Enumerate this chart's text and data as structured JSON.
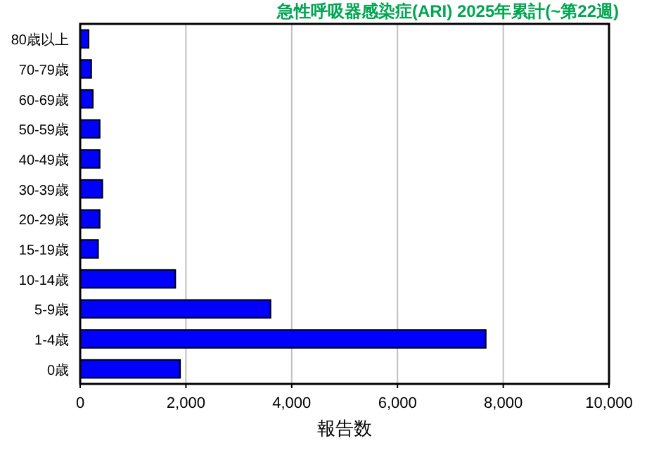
{
  "chart_data": {
    "type": "bar",
    "orientation": "horizontal",
    "title": "急性呼吸器感染症(ARI) 2025年累計(~第22週)",
    "xlabel": "報告数",
    "categories": [
      "80歳以上",
      "70-79歳",
      "60-69歳",
      "50-59歳",
      "40-49歳",
      "30-39歳",
      "20-29歳",
      "15-19歳",
      "10-14歳",
      "5-9歳",
      "1-4歳",
      "0歳"
    ],
    "values": [
      160,
      210,
      240,
      370,
      370,
      420,
      370,
      340,
      1800,
      3600,
      7670,
      1890
    ],
    "color": "#0000ff",
    "xlim": [
      0,
      10000
    ],
    "xticks": [
      0,
      {
        "value": 2000,
        "label": "2,000"
      },
      {
        "value": 4000,
        "label": "4,000"
      },
      {
        "value": 6000,
        "label": "6,000"
      },
      {
        "value": 8000,
        "label": "8,000"
      },
      {
        "value": 10000,
        "label": "10,000"
      }
    ],
    "grid": "x"
  }
}
